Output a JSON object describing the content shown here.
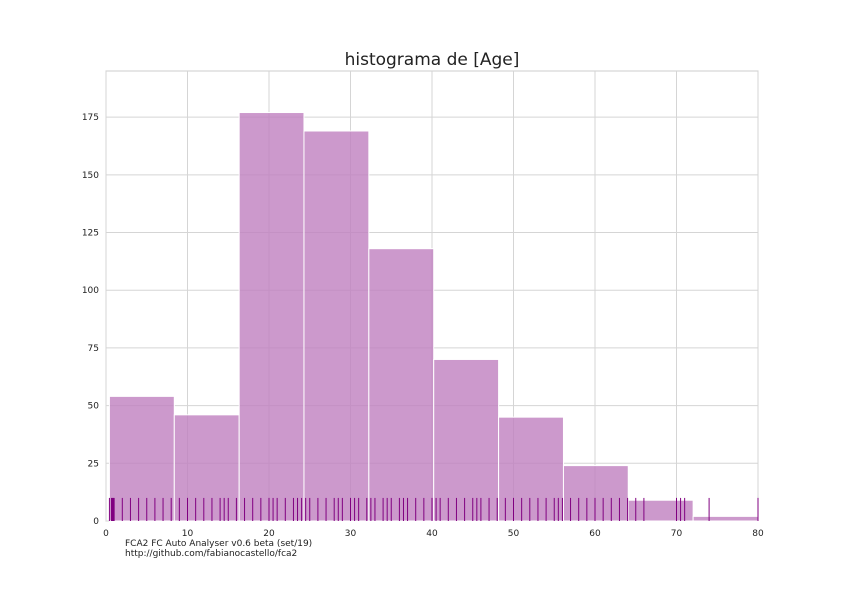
{
  "chart_data": {
    "type": "bar",
    "title": "histograma de [Age]",
    "xlabel": "",
    "ylabel": "",
    "xlim": [
      0,
      80
    ],
    "ylim": [
      0,
      195
    ],
    "xticks": [
      0,
      10,
      20,
      30,
      40,
      50,
      60,
      70,
      80
    ],
    "yticks": [
      0,
      25,
      50,
      75,
      100,
      125,
      150,
      175
    ],
    "grid": true,
    "bins": [
      {
        "x0": 0.42,
        "x1": 8.38,
        "count": 54
      },
      {
        "x0": 8.38,
        "x1": 16.34,
        "count": 46
      },
      {
        "x0": 16.34,
        "x1": 24.29,
        "count": 177
      },
      {
        "x0": 24.29,
        "x1": 32.25,
        "count": 169
      },
      {
        "x0": 32.25,
        "x1": 40.21,
        "count": 118
      },
      {
        "x0": 40.21,
        "x1": 48.17,
        "count": 70
      },
      {
        "x0": 48.17,
        "x1": 56.13,
        "count": 45
      },
      {
        "x0": 56.13,
        "x1": 64.08,
        "count": 24
      },
      {
        "x0": 64.08,
        "x1": 72.04,
        "count": 9
      },
      {
        "x0": 72.04,
        "x1": 80.0,
        "count": 2
      }
    ],
    "rug": [
      0.42,
      0.67,
      0.75,
      0.83,
      0.92,
      1,
      2,
      3,
      4,
      5,
      6,
      7,
      8,
      9,
      10,
      11,
      12,
      13,
      14,
      14.5,
      15,
      16,
      17,
      18,
      19,
      20,
      20.5,
      21,
      22,
      23,
      23.5,
      24,
      24.5,
      25,
      26,
      27,
      28,
      28.5,
      29,
      30,
      30.5,
      31,
      32,
      32.5,
      33,
      34,
      34.5,
      35,
      36,
      36.5,
      37,
      38,
      39,
      40,
      40.5,
      41,
      42,
      43,
      44,
      45,
      45.5,
      46,
      47,
      48,
      49,
      50,
      51,
      52,
      53,
      54,
      55,
      55.5,
      56,
      57,
      58,
      59,
      60,
      61,
      62,
      63,
      64,
      65,
      66,
      70,
      70.5,
      71,
      74,
      80
    ],
    "bar_color": "#bf7fbf",
    "rug_color": "#800080"
  },
  "footer": {
    "line1": "FCA2 FC Auto Analyser v0.6 beta (set/19)",
    "line2": "http://github.com/fabianocastello/fca2"
  }
}
